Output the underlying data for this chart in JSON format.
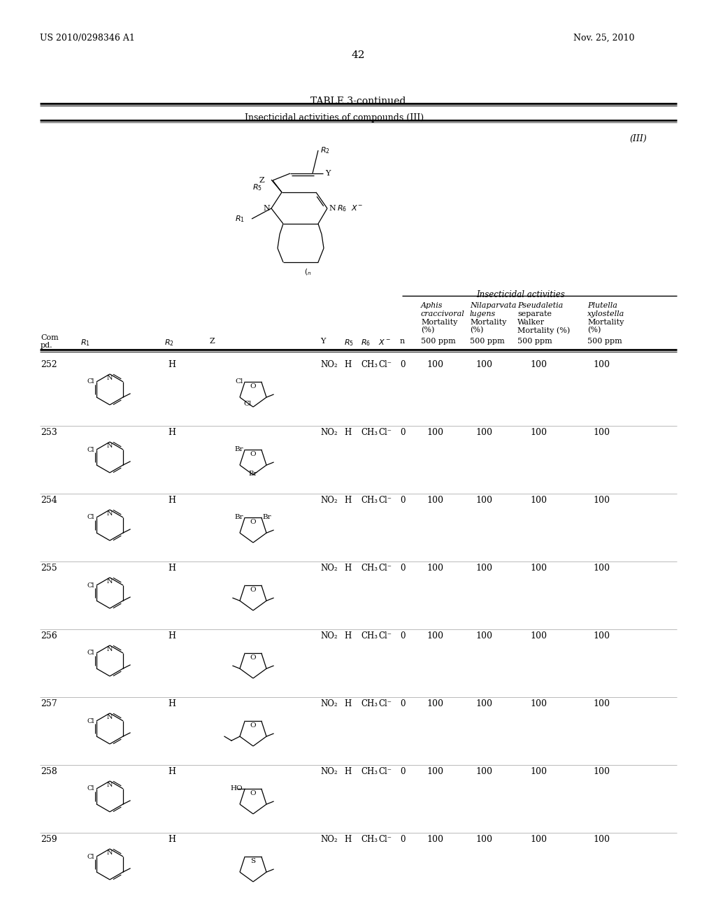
{
  "page_header_left": "US 2010/0298346 A1",
  "page_header_right": "Nov. 25, 2010",
  "page_number": "42",
  "table_title": "TABLE 3-continued",
  "table_subtitle": "Insecticidal activities of compounds (III)",
  "structure_label": "(III)",
  "insecticidal_header": "Insecticidal activities",
  "rows": [
    {
      "num": "252",
      "R2": "H",
      "Y": "NO₂",
      "R5": "H",
      "R6": "CH₃",
      "X": "Cl⁻",
      "n": "0",
      "aphis": "100",
      "nila": "100",
      "pseudo": "100",
      "plutella": "100"
    },
    {
      "num": "253",
      "R2": "H",
      "Y": "NO₂",
      "R5": "H",
      "R6": "CH₃",
      "X": "Cl⁻",
      "n": "0",
      "aphis": "100",
      "nila": "100",
      "pseudo": "100",
      "plutella": "100"
    },
    {
      "num": "254",
      "R2": "H",
      "Y": "NO₂",
      "R5": "H",
      "R6": "CH₃",
      "X": "Cl⁻",
      "n": "0",
      "aphis": "100",
      "nila": "100",
      "pseudo": "100",
      "plutella": "100"
    },
    {
      "num": "255",
      "R2": "H",
      "Y": "NO₂",
      "R5": "H",
      "R6": "CH₃",
      "X": "Cl⁻",
      "n": "0",
      "aphis": "100",
      "nila": "100",
      "pseudo": "100",
      "plutella": "100"
    },
    {
      "num": "256",
      "R2": "H",
      "Y": "NO₂",
      "R5": "H",
      "R6": "CH₃",
      "X": "Cl⁻",
      "n": "0",
      "aphis": "100",
      "nila": "100",
      "pseudo": "100",
      "plutella": "100"
    },
    {
      "num": "257",
      "R2": "H",
      "Y": "NO₂",
      "R5": "H",
      "R6": "CH₃",
      "X": "Cl⁻",
      "n": "0",
      "aphis": "100",
      "nila": "100",
      "pseudo": "100",
      "plutella": "100"
    },
    {
      "num": "258",
      "R2": "H",
      "Y": "NO₂",
      "R5": "H",
      "R6": "CH₃",
      "X": "Cl⁻",
      "n": "0",
      "aphis": "100",
      "nila": "100",
      "pseudo": "100",
      "plutella": "100"
    },
    {
      "num": "259",
      "R2": "H",
      "Y": "NO₂",
      "R5": "H",
      "R6": "CH₃",
      "X": "Cl⁻",
      "n": "0",
      "aphis": "100",
      "nila": "100",
      "pseudo": "100",
      "plutella": "100"
    }
  ]
}
